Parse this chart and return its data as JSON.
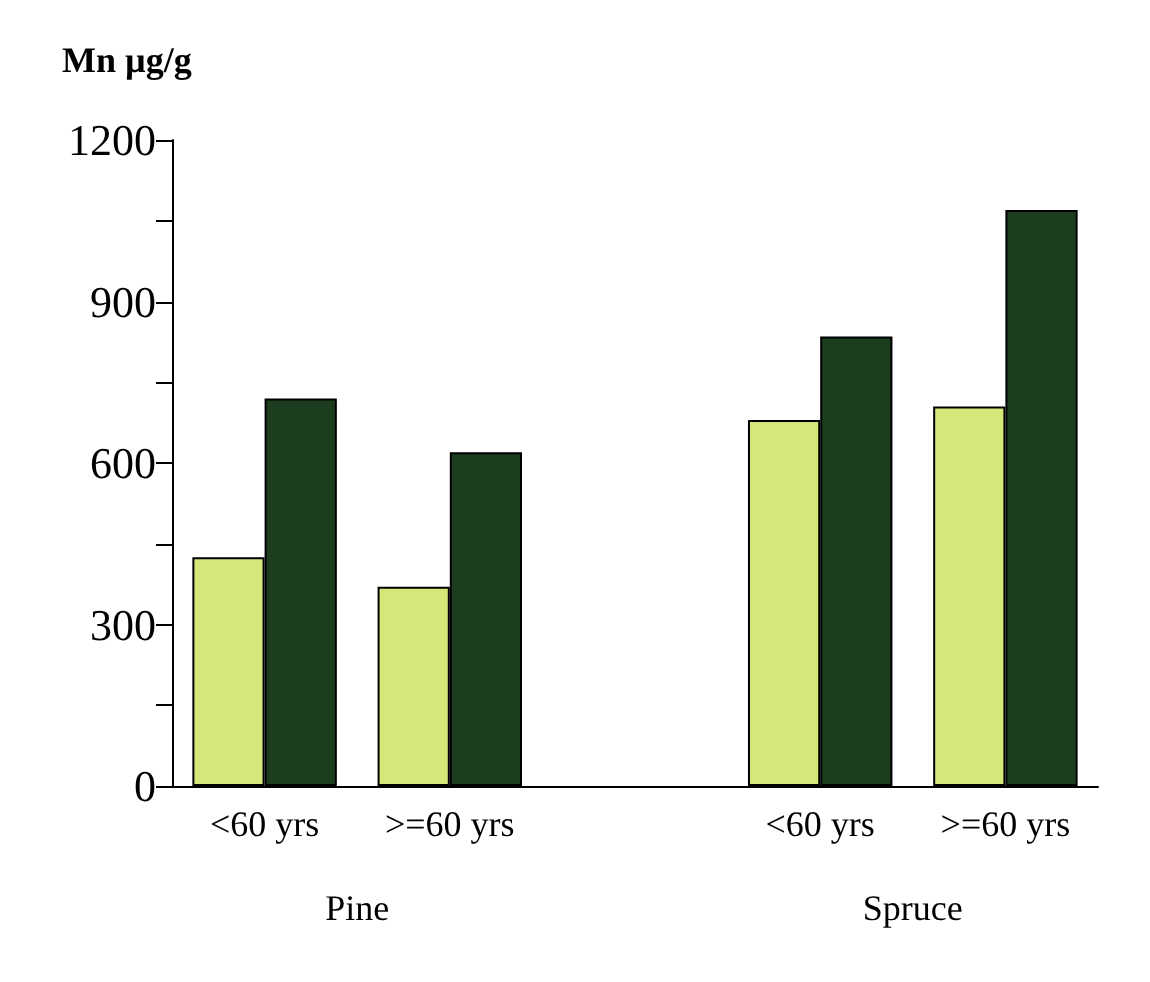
{
  "chart_data": {
    "type": "bar",
    "ylabel": "Mn µg/g",
    "categories": [
      "<60 yrs",
      ">=60 yrs",
      null,
      "<60 yrs",
      ">=60 yrs"
    ],
    "series": [
      {
        "color": "#d4e87a",
        "values": [
          425,
          370,
          null,
          680,
          705
        ]
      },
      {
        "color": "#1c3d1e",
        "values": [
          720,
          620,
          null,
          835,
          1070
        ]
      }
    ],
    "ylim": [
      0,
      1200
    ],
    "yticks": [
      0,
      {
        "value": 150,
        "label": null
      },
      300,
      {
        "value": 450,
        "label": null
      },
      600,
      {
        "value": 750,
        "label": null
      },
      900,
      {
        "value": 1050,
        "label": null
      },
      1200
    ],
    "annotations": [
      "Pine",
      "Spruce"
    ],
    "grid": false
  }
}
